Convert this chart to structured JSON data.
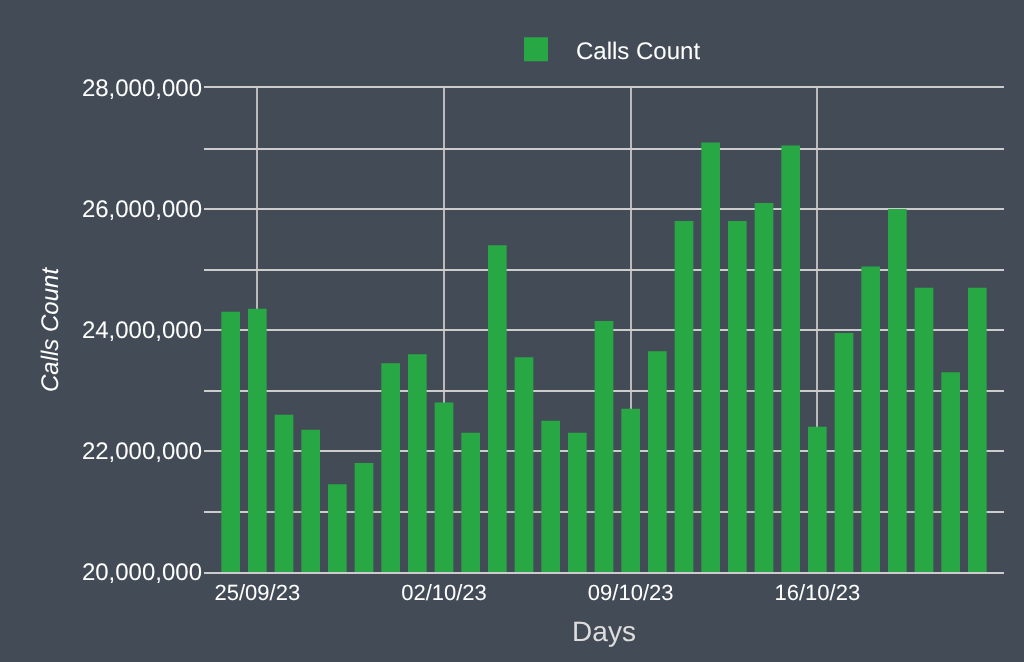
{
  "chart_data": {
    "type": "bar",
    "xlabel": "Days",
    "ylabel": "Calls Count",
    "x": [
      "--09-24",
      "--09-25",
      "--09-26",
      "--09-27",
      "--09-28",
      "--09-29",
      "--09-30",
      "--10-01",
      "--10-02",
      "--10-03",
      "--10-04",
      "--10-05",
      "--10-06",
      "--10-07",
      "--10-08",
      "--10-09",
      "--10-10",
      "--10-11",
      "--10-12",
      "--10-13",
      "--10-14",
      "--10-15",
      "--10-16",
      "--10-17",
      "--10-18",
      "--10-19",
      "--10-20",
      "--10-21",
      "--10-22"
    ],
    "series": [
      {
        "name": "Calls Count",
        "color": "#28a745",
        "values": [
          24300000,
          24350000,
          22600000,
          22350000,
          21450000,
          21800000,
          23450000,
          23600000,
          22800000,
          22300000,
          25400000,
          23550000,
          22500000,
          22300000,
          24150000,
          22700000,
          23650000,
          25800000,
          27100000,
          25800000,
          26100000,
          27050000,
          22400000,
          23950000,
          25050000,
          26000000,
          24700000,
          23300000,
          24700000
        ]
      }
    ],
    "xlim": [
      "--09-23",
      "--10-23"
    ],
    "xticks": [
      {
        "value": "--09-25",
        "label": "25/09/23"
      },
      {
        "value": "--10-02",
        "label": "02/10/23"
      },
      {
        "value": "--10-09",
        "label": "09/10/23"
      },
      {
        "value": "--10-16",
        "label": "16/10/23"
      }
    ],
    "ylim": [
      20000000,
      28000000
    ],
    "yticks": [
      {
        "value": 20000000,
        "label": "20,000,000"
      },
      {
        "value": 21000000,
        "label": null
      },
      {
        "value": 22000000,
        "label": "22,000,000"
      },
      {
        "value": 23000000,
        "label": null
      },
      {
        "value": 24000000,
        "label": "24,000,000"
      },
      {
        "value": 25000000,
        "label": null
      },
      {
        "value": 26000000,
        "label": "26,000,000"
      },
      {
        "value": 27000000,
        "label": null
      },
      {
        "value": 28000000,
        "label": "28,000,000"
      }
    ],
    "grid": true,
    "legend": "top"
  }
}
